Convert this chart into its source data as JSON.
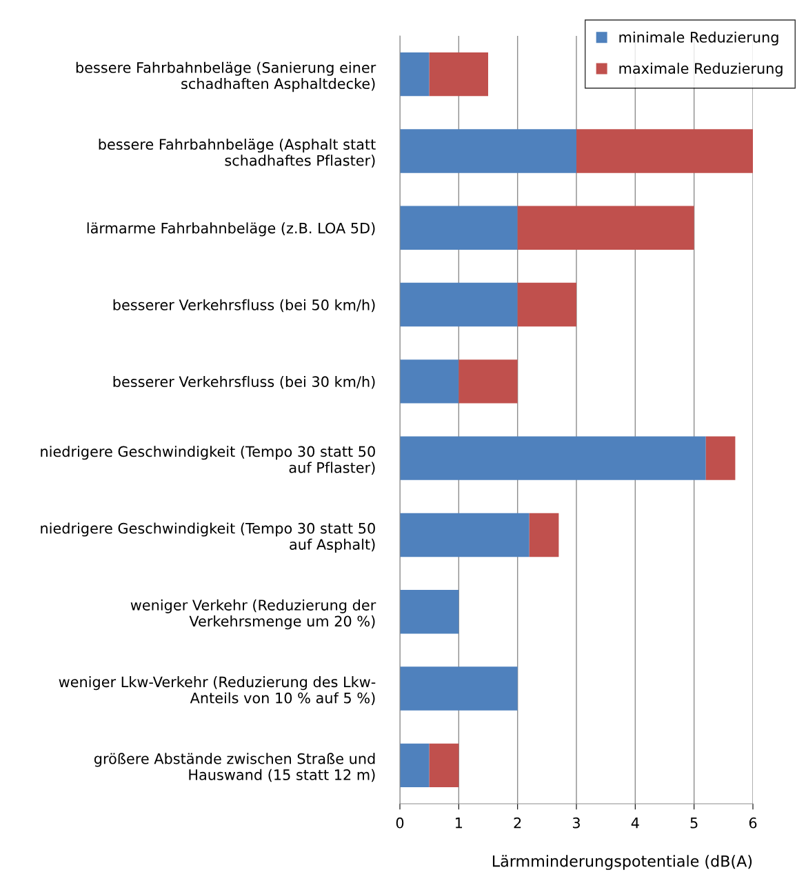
{
  "chart_data": {
    "type": "bar",
    "orientation": "horizontal",
    "stacked": true,
    "categories": [
      "bessere Fahrbahnbeläge (Sanierung einer\nschadhaften Asphaltdecke)",
      "bessere Fahrbahnbeläge (Asphalt statt\nschadhaftes Pflaster)",
      "lärmarme Fahrbahnbeläge (z.B. LOA 5D)",
      "besserer Verkehrsfluss (bei 50 km/h)",
      "besserer Verkehrsfluss (bei 30 km/h)",
      "niedrigere Geschwindigkeit (Tempo 30 statt 50\nauf Pflaster)",
      "niedrigere Geschwindigkeit (Tempo 30 statt 50\nauf Asphalt)",
      "weniger Verkehr (Reduzierung der\nVerkehrsmenge um 20 %)",
      "weniger Lkw-Verkehr (Reduzierung des Lkw-\nAnteils von 10 % auf 5 %)",
      "größere Abstände zwischen Straße und\nHauswand (15 statt 12 m)"
    ],
    "series": [
      {
        "name": "minimale Reduzierung",
        "color": "#4f81bd",
        "values": [
          0.5,
          3,
          2,
          2,
          1,
          5.2,
          2.2,
          1,
          2,
          0.5
        ]
      },
      {
        "name": "maximale Reduzierung",
        "color": "#c0504d",
        "values": [
          1,
          3,
          3,
          1,
          1,
          0.5,
          0.5,
          0,
          0,
          0.5
        ]
      }
    ],
    "xlabel": "Lärmminderungspotentiale (dB(A)",
    "xlim": [
      0,
      6
    ],
    "xticks": [
      0,
      1,
      2,
      3,
      4,
      5,
      6
    ],
    "grid": "x",
    "legend": "top right"
  }
}
